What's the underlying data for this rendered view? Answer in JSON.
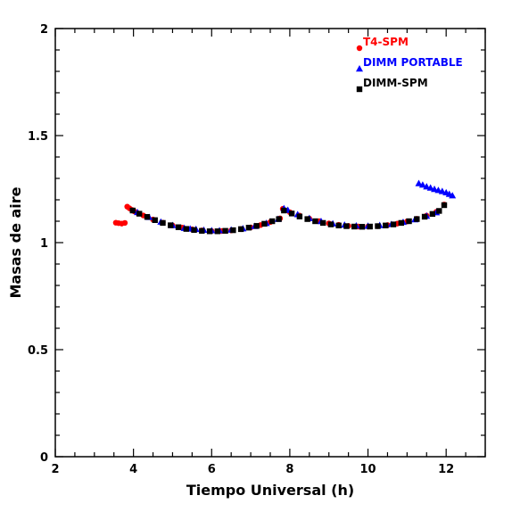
{
  "chart_data": {
    "type": "scatter",
    "title": "",
    "xlabel": "Tiempo Universal (h)",
    "ylabel": "Masas de aire",
    "xlim": [
      2,
      13
    ],
    "ylim": [
      0,
      2
    ],
    "xticks": [
      2,
      4,
      6,
      8,
      10,
      12
    ],
    "xticklabels": [
      "2",
      "4",
      "6",
      "8",
      "10",
      "12"
    ],
    "yticks": [
      0,
      0.5,
      1,
      1.5,
      2
    ],
    "yticklabels": [
      "0",
      "0.5",
      "1",
      "1.5",
      "2"
    ],
    "grid": false,
    "legend_position": "top-right",
    "series": [
      {
        "name": "T4-SPM",
        "color": "#ff0000",
        "marker": "circle",
        "points": [
          {
            "x": 3.55,
            "y": 1.093
          },
          {
            "x": 3.62,
            "y": 1.091
          },
          {
            "x": 3.7,
            "y": 1.089
          },
          {
            "x": 3.78,
            "y": 1.092
          },
          {
            "x": 3.84,
            "y": 1.168
          },
          {
            "x": 3.9,
            "y": 1.16
          },
          {
            "x": 3.96,
            "y": 1.153
          },
          {
            "x": 4.02,
            "y": 1.146
          },
          {
            "x": 4.1,
            "y": 1.139
          },
          {
            "x": 4.25,
            "y": 1.127
          },
          {
            "x": 4.5,
            "y": 1.108
          },
          {
            "x": 4.75,
            "y": 1.093
          },
          {
            "x": 5.0,
            "y": 1.08
          },
          {
            "x": 5.25,
            "y": 1.07
          },
          {
            "x": 5.5,
            "y": 1.062
          },
          {
            "x": 5.75,
            "y": 1.057
          },
          {
            "x": 6.0,
            "y": 1.054
          },
          {
            "x": 6.25,
            "y": 1.054
          },
          {
            "x": 6.5,
            "y": 1.057
          },
          {
            "x": 6.75,
            "y": 1.063
          },
          {
            "x": 7.0,
            "y": 1.071
          },
          {
            "x": 7.25,
            "y": 1.082
          },
          {
            "x": 7.5,
            "y": 1.096
          },
          {
            "x": 7.75,
            "y": 1.113
          },
          {
            "x": 7.82,
            "y": 1.158
          },
          {
            "x": 8.0,
            "y": 1.142
          },
          {
            "x": 8.25,
            "y": 1.126
          },
          {
            "x": 8.5,
            "y": 1.112
          },
          {
            "x": 8.75,
            "y": 1.1
          },
          {
            "x": 9.0,
            "y": 1.09
          },
          {
            "x": 9.25,
            "y": 1.083
          },
          {
            "x": 9.5,
            "y": 1.078
          },
          {
            "x": 9.75,
            "y": 1.075
          },
          {
            "x": 10.0,
            "y": 1.075
          },
          {
            "x": 10.25,
            "y": 1.077
          },
          {
            "x": 10.5,
            "y": 1.082
          },
          {
            "x": 10.75,
            "y": 1.089
          },
          {
            "x": 11.0,
            "y": 1.099
          },
          {
            "x": 11.25,
            "y": 1.111
          },
          {
            "x": 11.5,
            "y": 1.126
          },
          {
            "x": 11.75,
            "y": 1.144
          },
          {
            "x": 11.95,
            "y": 1.178
          }
        ]
      },
      {
        "name": "DIMM PORTABLE",
        "color": "#0000ff",
        "marker": "triangle",
        "points": [
          {
            "x": 4.1,
            "y": 1.142
          },
          {
            "x": 4.4,
            "y": 1.119
          },
          {
            "x": 4.7,
            "y": 1.097
          },
          {
            "x": 5.0,
            "y": 1.081
          },
          {
            "x": 5.3,
            "y": 1.068
          },
          {
            "x": 5.45,
            "y": 1.065
          },
          {
            "x": 5.6,
            "y": 1.063
          },
          {
            "x": 5.8,
            "y": 1.059
          },
          {
            "x": 6.0,
            "y": 1.057
          },
          {
            "x": 6.2,
            "y": 1.057
          },
          {
            "x": 6.5,
            "y": 1.06
          },
          {
            "x": 6.8,
            "y": 1.066
          },
          {
            "x": 7.1,
            "y": 1.077
          },
          {
            "x": 7.4,
            "y": 1.091
          },
          {
            "x": 7.7,
            "y": 1.11
          },
          {
            "x": 7.85,
            "y": 1.16
          },
          {
            "x": 7.95,
            "y": 1.152
          },
          {
            "x": 8.2,
            "y": 1.132
          },
          {
            "x": 8.5,
            "y": 1.114
          },
          {
            "x": 8.8,
            "y": 1.1
          },
          {
            "x": 9.1,
            "y": 1.089
          },
          {
            "x": 9.4,
            "y": 1.083
          },
          {
            "x": 9.7,
            "y": 1.079
          },
          {
            "x": 10.0,
            "y": 1.078
          },
          {
            "x": 10.3,
            "y": 1.081
          },
          {
            "x": 10.6,
            "y": 1.086
          },
          {
            "x": 10.9,
            "y": 1.096
          },
          {
            "x": 11.2,
            "y": 1.108
          },
          {
            "x": 11.5,
            "y": 1.125
          },
          {
            "x": 11.75,
            "y": 1.141
          },
          {
            "x": 11.3,
            "y": 1.277
          },
          {
            "x": 11.4,
            "y": 1.27
          },
          {
            "x": 11.5,
            "y": 1.262
          },
          {
            "x": 11.6,
            "y": 1.256
          },
          {
            "x": 11.7,
            "y": 1.25
          },
          {
            "x": 11.8,
            "y": 1.245
          },
          {
            "x": 11.9,
            "y": 1.24
          },
          {
            "x": 12.0,
            "y": 1.234
          },
          {
            "x": 12.08,
            "y": 1.227
          },
          {
            "x": 12.16,
            "y": 1.22
          }
        ]
      },
      {
        "name": "DIMM-SPM",
        "color": "#000000",
        "marker": "square",
        "points": [
          {
            "x": 3.98,
            "y": 1.15
          },
          {
            "x": 4.15,
            "y": 1.135
          },
          {
            "x": 4.35,
            "y": 1.12
          },
          {
            "x": 4.55,
            "y": 1.105
          },
          {
            "x": 4.75,
            "y": 1.092
          },
          {
            "x": 4.95,
            "y": 1.081
          },
          {
            "x": 5.15,
            "y": 1.072
          },
          {
            "x": 5.35,
            "y": 1.064
          },
          {
            "x": 5.55,
            "y": 1.059
          },
          {
            "x": 5.75,
            "y": 1.055
          },
          {
            "x": 5.95,
            "y": 1.053
          },
          {
            "x": 6.15,
            "y": 1.053
          },
          {
            "x": 6.35,
            "y": 1.055
          },
          {
            "x": 6.55,
            "y": 1.058
          },
          {
            "x": 6.75,
            "y": 1.063
          },
          {
            "x": 6.95,
            "y": 1.07
          },
          {
            "x": 7.15,
            "y": 1.078
          },
          {
            "x": 7.35,
            "y": 1.088
          },
          {
            "x": 7.55,
            "y": 1.1
          },
          {
            "x": 7.72,
            "y": 1.11
          },
          {
            "x": 7.85,
            "y": 1.15
          },
          {
            "x": 8.05,
            "y": 1.136
          },
          {
            "x": 8.25,
            "y": 1.122
          },
          {
            "x": 8.45,
            "y": 1.11
          },
          {
            "x": 8.65,
            "y": 1.1
          },
          {
            "x": 8.85,
            "y": 1.092
          },
          {
            "x": 9.05,
            "y": 1.085
          },
          {
            "x": 9.25,
            "y": 1.08
          },
          {
            "x": 9.45,
            "y": 1.077
          },
          {
            "x": 9.65,
            "y": 1.075
          },
          {
            "x": 9.85,
            "y": 1.074
          },
          {
            "x": 10.05,
            "y": 1.075
          },
          {
            "x": 10.25,
            "y": 1.077
          },
          {
            "x": 10.45,
            "y": 1.08
          },
          {
            "x": 10.65,
            "y": 1.085
          },
          {
            "x": 10.85,
            "y": 1.092
          },
          {
            "x": 11.05,
            "y": 1.1
          },
          {
            "x": 11.25,
            "y": 1.11
          },
          {
            "x": 11.45,
            "y": 1.121
          },
          {
            "x": 11.65,
            "y": 1.134
          },
          {
            "x": 11.82,
            "y": 1.148
          },
          {
            "x": 11.95,
            "y": 1.175
          }
        ]
      }
    ]
  }
}
